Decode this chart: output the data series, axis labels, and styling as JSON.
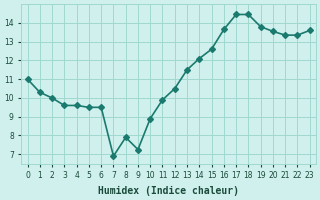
{
  "x": [
    0,
    1,
    2,
    3,
    4,
    5,
    6,
    7,
    8,
    9,
    10,
    11,
    12,
    13,
    14,
    15,
    16,
    17,
    18,
    19,
    20,
    21,
    22,
    23
  ],
  "y": [
    11.0,
    10.3,
    10.0,
    9.6,
    9.6,
    9.5,
    9.5,
    6.9,
    7.9,
    7.25,
    8.9,
    9.9,
    10.5,
    11.5,
    12.1,
    12.6,
    13.65,
    14.45,
    14.45,
    13.8,
    13.55,
    13.35,
    13.35,
    13.6
  ],
  "line_color": "#1a7a6e",
  "bg_color": "#cff0ec",
  "grid_color": "#a0d8d0",
  "xlabel": "Humidex (Indice chaleur)",
  "ylabel": "",
  "ylim": [
    6.5,
    15.0
  ],
  "xlim": [
    -0.5,
    23.5
  ],
  "yticks": [
    7,
    8,
    9,
    10,
    11,
    12,
    13,
    14
  ],
  "xtick_labels": [
    "0",
    "1",
    "2",
    "3",
    "4",
    "5",
    "6",
    "7",
    "8",
    "9",
    "10",
    "11",
    "12",
    "13",
    "14",
    "15",
    "16",
    "17",
    "18",
    "19",
    "20",
    "21",
    "22",
    "23"
  ],
  "marker": "D",
  "marker_size": 3,
  "line_width": 1.2,
  "font_color": "#1a4a3a",
  "xlabel_fontsize": 7,
  "tick_fontsize": 5.5
}
